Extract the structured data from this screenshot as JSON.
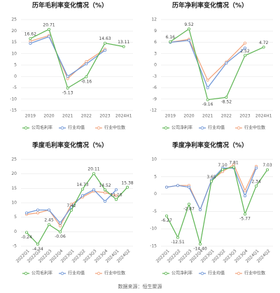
{
  "chart_data": [
    {
      "type": "line",
      "title": "历年毛利率变化情况（%）",
      "categories": [
        "2019",
        "2020",
        "2021",
        "2022",
        "2023",
        "2024H1"
      ],
      "ylim": [
        -15,
        25
      ],
      "yticks": [
        -15,
        -10,
        -5,
        0,
        5,
        10,
        15,
        20,
        25
      ],
      "grid": true,
      "series": [
        {
          "name": "公司毛利率",
          "color": "#5bb450",
          "values": [
            16.62,
            20.71,
            -5.13,
            -0.16,
            14.63,
            13.11
          ]
        },
        {
          "name": "行业均值",
          "color": "#6a93d6",
          "values": [
            14.5,
            17.5,
            0,
            5.5,
            11.5,
            null
          ]
        },
        {
          "name": "行业中位数",
          "color": "#f2a27a",
          "values": [
            15.5,
            18,
            -1,
            6.5,
            12,
            null
          ]
        }
      ]
    },
    {
      "type": "line",
      "title": "历年净利率变化情况（%）",
      "categories": [
        "2019",
        "2020",
        "2021",
        "2022",
        "2023",
        "2024H1"
      ],
      "ylim": [
        -12,
        12
      ],
      "yticks": [
        -12,
        -9,
        -6,
        -3,
        0,
        3,
        6,
        9,
        12
      ],
      "grid": true,
      "series": [
        {
          "name": "公司净利率",
          "color": "#5bb450",
          "values": [
            6.16,
            9.52,
            -9.16,
            -8.52,
            2.52,
            4.72
          ]
        },
        {
          "name": "行业均值",
          "color": "#6a93d6",
          "values": [
            6,
            6.5,
            -6,
            0.5,
            4.5,
            null
          ]
        },
        {
          "name": "行业中位数",
          "color": "#f2a27a",
          "values": [
            6,
            6.8,
            -4,
            0.8,
            5.8,
            null
          ]
        }
      ]
    },
    {
      "type": "line",
      "title": "季度毛利率变化情况（%）",
      "categories": [
        "2022Q1",
        "2022Q2",
        "2022Q3",
        "2022Q4",
        "2023Q1",
        "2023Q2",
        "2023Q3",
        "2023Q4",
        "2024Q1",
        "2024Q2"
      ],
      "ylim": [
        -5,
        25
      ],
      "yticks": [
        -5,
        0,
        5,
        10,
        15,
        20,
        25
      ],
      "grid": true,
      "series": [
        {
          "name": "公司毛利率",
          "color": "#5bb450",
          "values": [
            -0.24,
            -4.34,
            2.45,
            -0.06,
            7.42,
            14.73,
            20.11,
            14.52,
            11.16,
            15.38
          ]
        },
        {
          "name": "行业均值",
          "color": "#6a93d6",
          "values": [
            6.5,
            7.5,
            7.5,
            3,
            8.5,
            12.5,
            14.5,
            10.5,
            14.5,
            null
          ]
        },
        {
          "name": "行业中位数",
          "color": "#f2a27a",
          "values": [
            6,
            6.5,
            7.5,
            2,
            9.5,
            12,
            14,
            13.5,
            12.5,
            null
          ]
        }
      ]
    },
    {
      "type": "line",
      "title": "季度净利率变化情况（%）",
      "categories": [
        "2022Q1",
        "2022Q2",
        "2022Q3",
        "2022Q4",
        "2023Q1",
        "2023Q2",
        "2023Q3",
        "2023Q4",
        "2024Q1",
        "2024Q2"
      ],
      "ylim": [
        -15,
        10
      ],
      "yticks": [
        -15,
        -10,
        -5,
        0,
        5,
        10
      ],
      "grid": true,
      "series": [
        {
          "name": "公司净利率",
          "color": "#5bb450",
          "values": [
            -6.27,
            -12.51,
            -2.87,
            -14.4,
            3.65,
            7.1,
            7.81,
            -5.77,
            2.34,
            7.03
          ],
          "value_labels": [
            "-6.27",
            "-12.51",
            "-2.87",
            "-14.40",
            "3.65",
            "7.10",
            "7.81",
            "-5.77",
            "2.34",
            "7.03"
          ]
        },
        {
          "name": "行业均值",
          "color": "#6a93d6",
          "values": [
            2,
            2.5,
            2,
            -4.5,
            4,
            7.5,
            7.5,
            -0.5,
            7.5,
            null
          ]
        },
        {
          "name": "行业中位数",
          "color": "#f2a27a",
          "values": [
            2,
            2.5,
            2.5,
            -4.5,
            4,
            6.5,
            8.5,
            1,
            8,
            null
          ]
        }
      ]
    }
  ],
  "source": "数据来源：恒生聚源"
}
